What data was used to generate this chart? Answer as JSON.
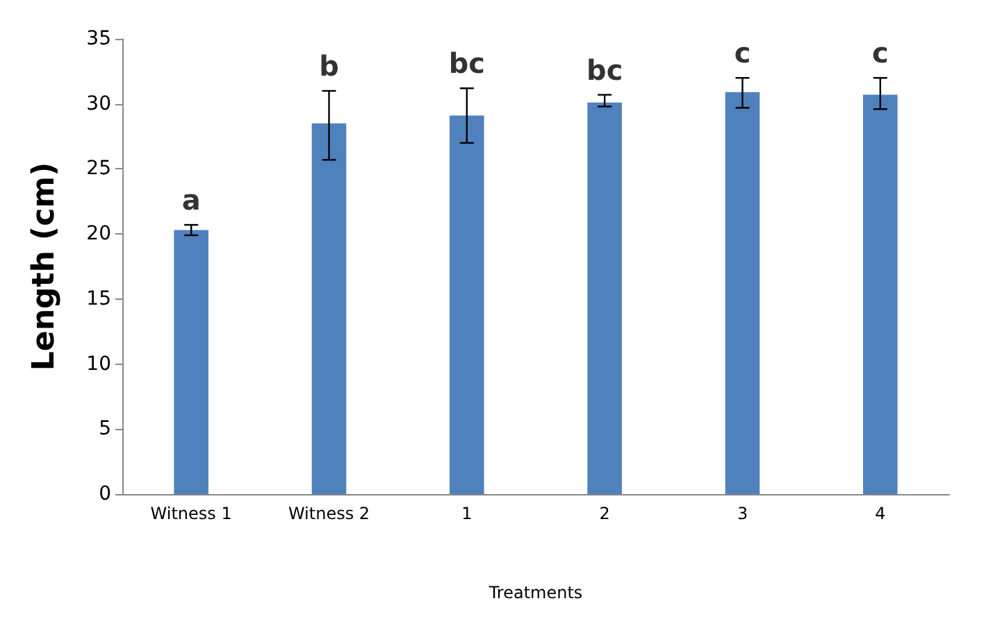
{
  "chart_data": {
    "type": "bar",
    "xlabel": "Treatments",
    "ylabel": "Length (cm)",
    "categories": [
      "Witness 1",
      "Witness 2",
      "1",
      "2",
      "3",
      "4"
    ],
    "values": [
      20.3,
      28.5,
      29.1,
      30.1,
      30.9,
      30.7
    ],
    "errors": [
      [
        19.9,
        20.7
      ],
      [
        25.7,
        31.0
      ],
      [
        27.0,
        31.2
      ],
      [
        29.8,
        30.7
      ],
      [
        29.7,
        32.0
      ],
      [
        29.6,
        32.0
      ]
    ],
    "color": "#4f81bd",
    "ylim": [
      0,
      35
    ],
    "yticks": [
      0,
      5,
      10,
      15,
      20,
      25,
      30,
      35
    ],
    "grid": false,
    "annotations": [
      {
        "text": "a",
        "x": "Witness 1",
        "y": 20.7
      },
      {
        "text": "b",
        "x": "Witness 2",
        "y": 31.0
      },
      {
        "text": "bc",
        "x": "1",
        "y": 31.2
      },
      {
        "text": "bc",
        "x": "2",
        "y": 30.7
      },
      {
        "text": "c",
        "x": "3",
        "y": 32.0
      },
      {
        "text": "c",
        "x": "4",
        "y": 32.0
      }
    ]
  }
}
